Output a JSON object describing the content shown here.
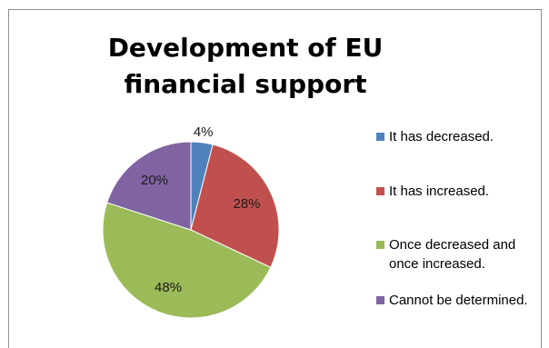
{
  "chart_data": {
    "type": "pie",
    "title": "Development of EU financial support",
    "categories": [
      "It has decreased.",
      "It has increased.",
      "Once decreased and once increased.",
      "Cannot be determined."
    ],
    "values": [
      4,
      28,
      48,
      20
    ],
    "value_labels": [
      "4%",
      "28%",
      "48%",
      "20%"
    ],
    "colors": [
      "#4f81bd",
      "#c0504d",
      "#9bbb59",
      "#8064a2"
    ],
    "legend_position": "right"
  }
}
